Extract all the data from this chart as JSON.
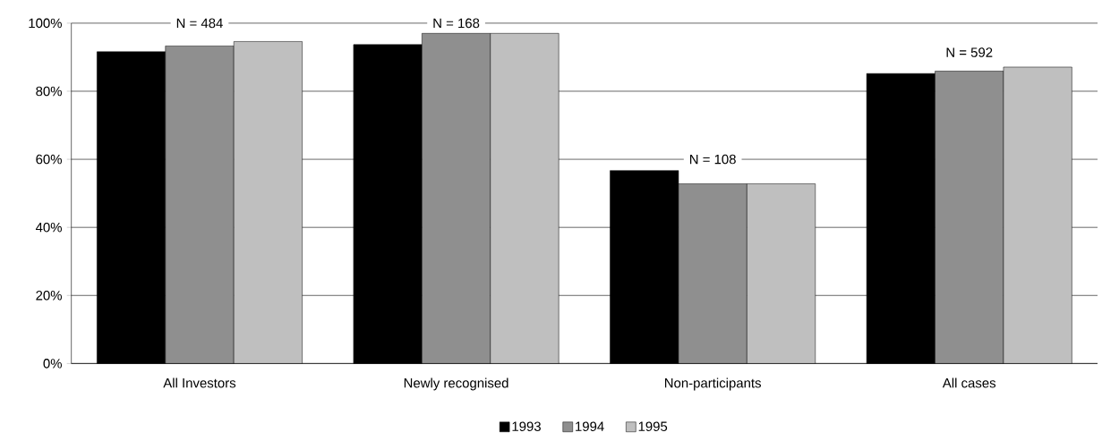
{
  "chart_data": {
    "type": "bar",
    "categories": [
      "All Investors",
      "Newly recognised",
      "Non-participants",
      "All cases"
    ],
    "series": [
      {
        "name": "1993",
        "color": "#000000",
        "values": [
          91.6,
          93.7,
          56.7,
          85.2
        ]
      },
      {
        "name": "1994",
        "color": "#8f8f8f",
        "values": [
          93.3,
          97.0,
          52.8,
          85.9
        ]
      },
      {
        "name": "1995",
        "color": "#bfbfbf",
        "values": [
          94.6,
          97.0,
          52.8,
          87.1
        ]
      }
    ],
    "ylim": [
      0,
      100
    ],
    "yticks": [
      {
        "value": 0,
        "label": "0%"
      },
      {
        "value": 20,
        "label": "20%"
      },
      {
        "value": 40,
        "label": "40%"
      },
      {
        "value": 60,
        "label": "60%"
      },
      {
        "value": 80,
        "label": "80%"
      },
      {
        "value": 100,
        "label": "100%"
      }
    ],
    "grid": "y",
    "legend": "bottom",
    "annotations": [
      "N = 484",
      "N = 168",
      "N = 108",
      "N = 592"
    ]
  }
}
